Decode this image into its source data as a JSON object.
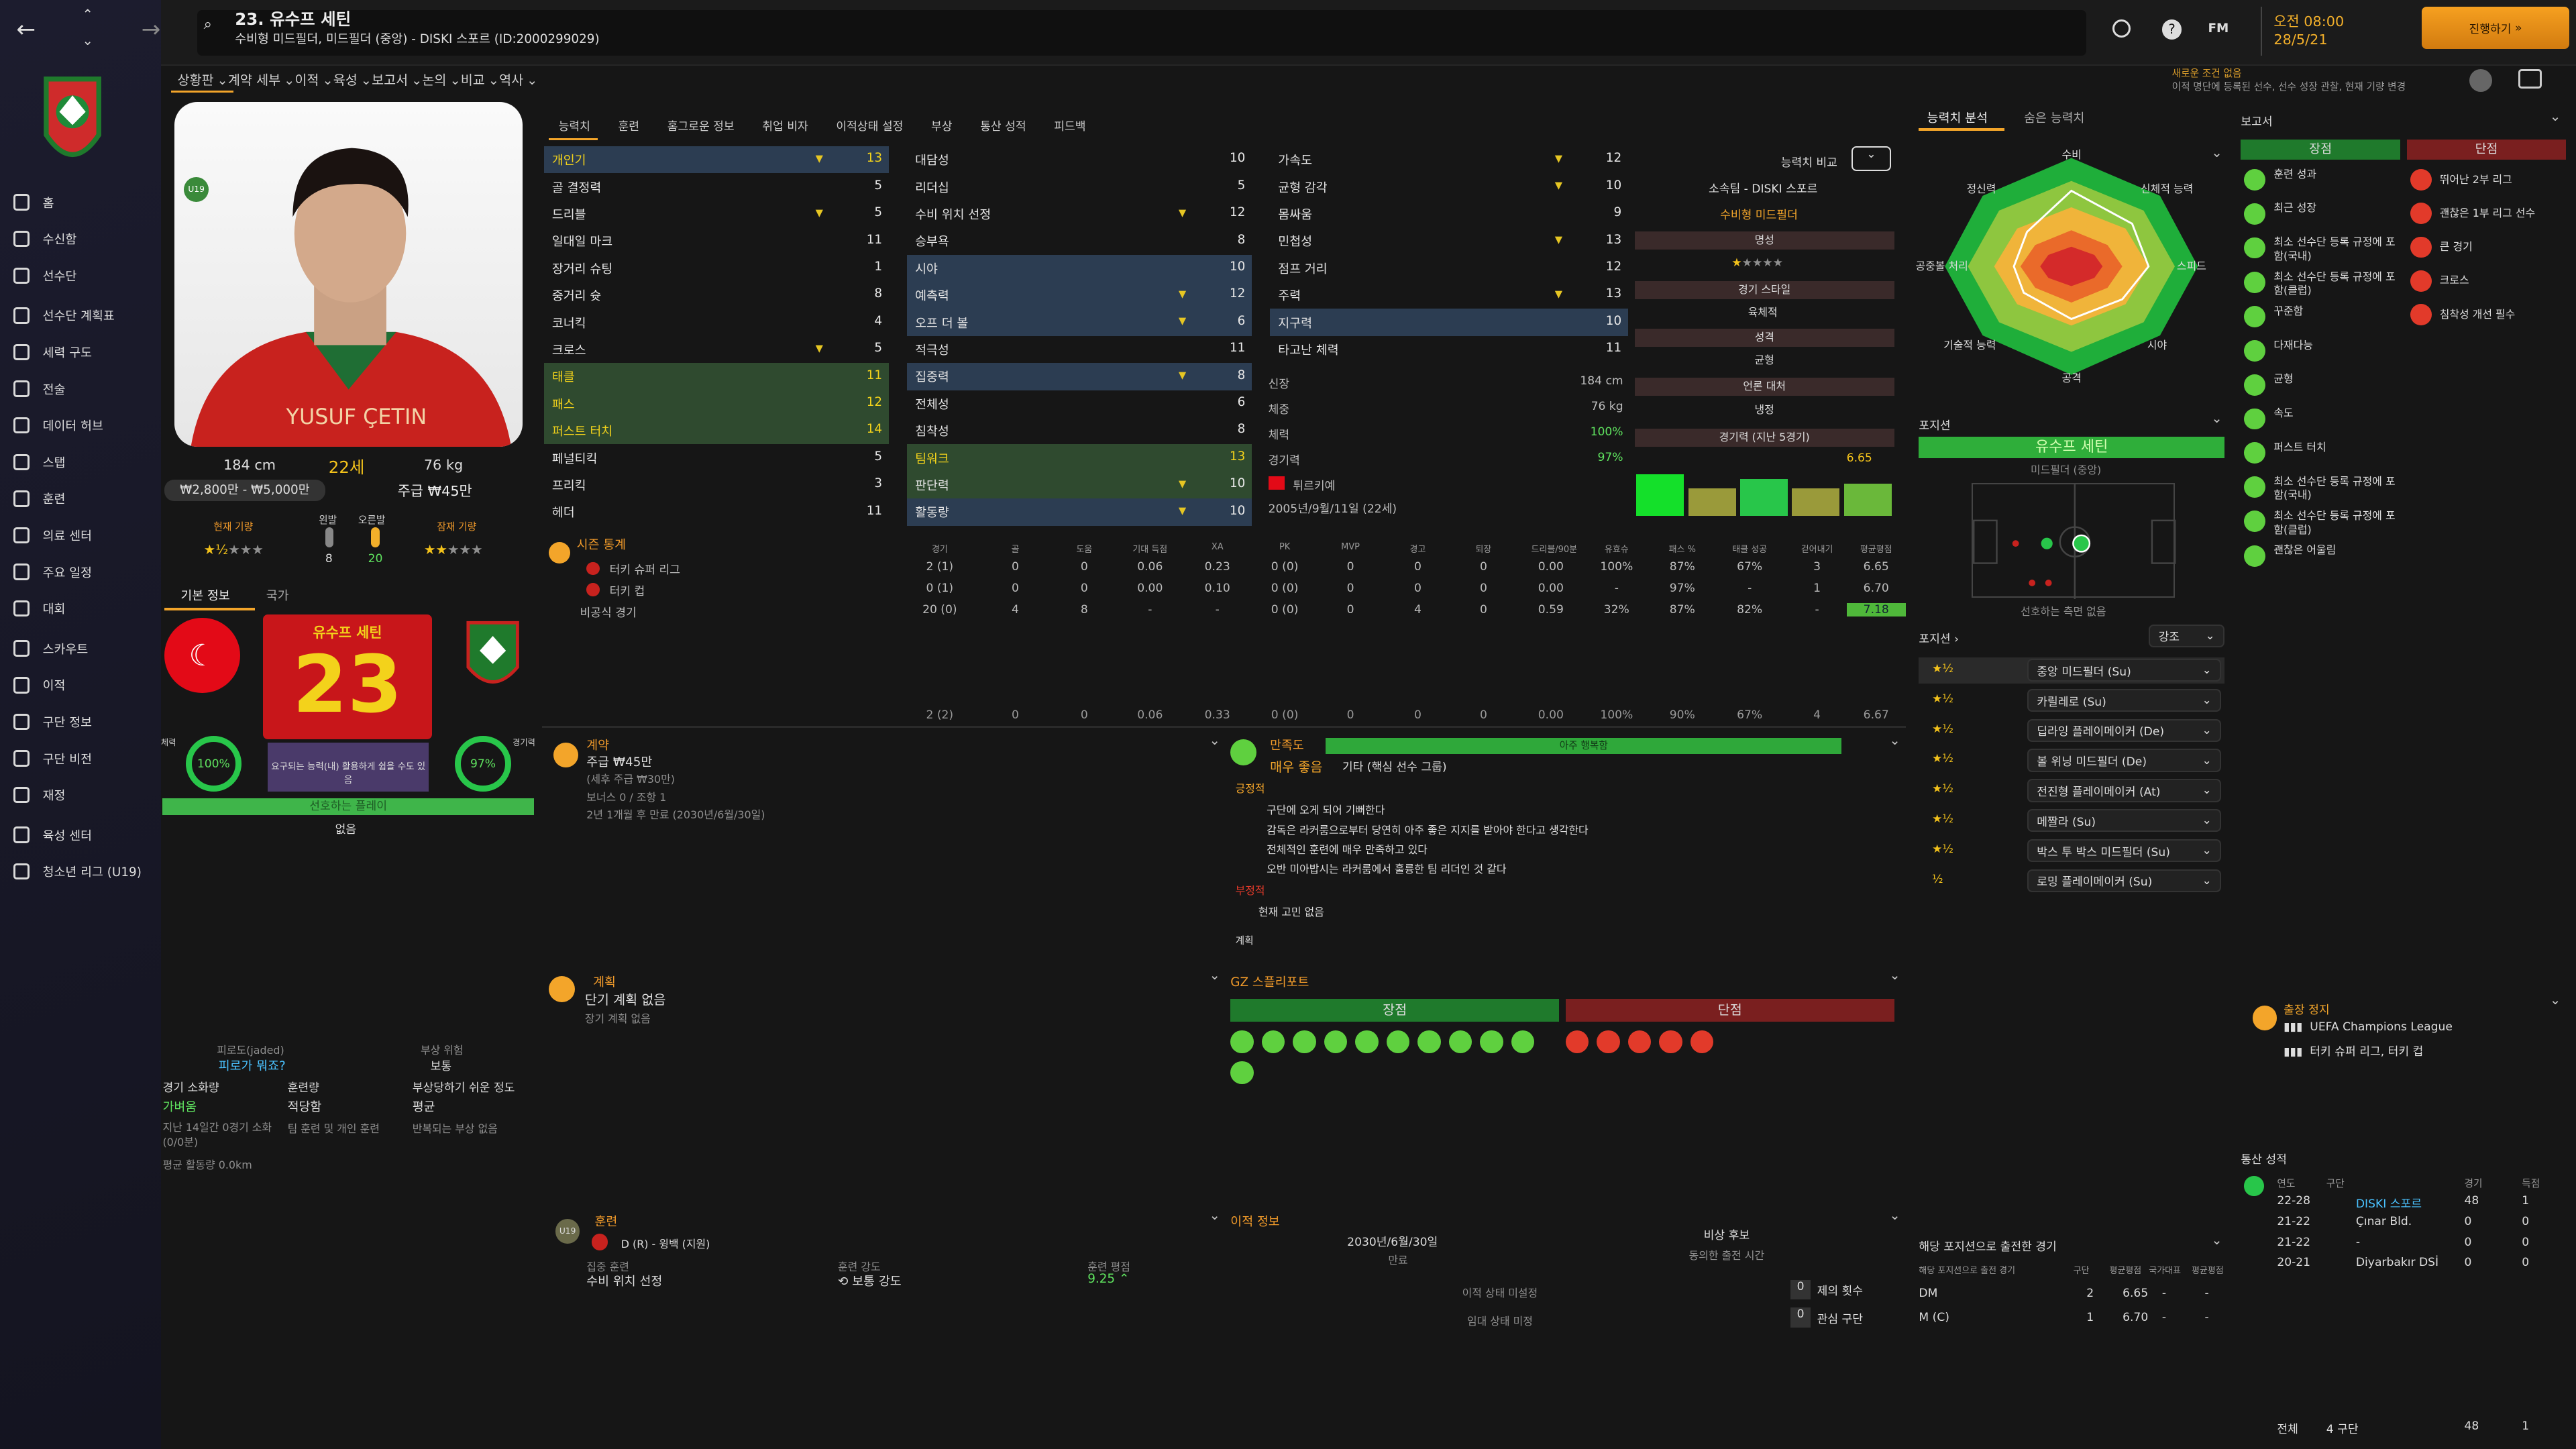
{
  "header": {
    "name": "23. 유수프 세틴",
    "subtitle": "수비형 미드필더, 미드필더 (중앙) - DISKI 스포르 (ID:2000299029)",
    "time": "오전 08:00",
    "date": "28/5/21",
    "continue": "진행하기",
    "notice1": "새로운 조건 없음",
    "notice2": "이적 명단에 등록된 선수, 선수 성장 관찰, 현재 기량 변경",
    "fm": "FM"
  },
  "subnav": [
    "상황판",
    "계약 세부",
    "이적",
    "육성",
    "보고서",
    "논의",
    "비교",
    "역사"
  ],
  "sidebar": [
    "홈",
    "수신함",
    "선수단",
    "선수단 계획표",
    "세력 구도",
    "전술",
    "데이터 허브",
    "스탭",
    "훈련",
    "의료 센터",
    "주요 일정",
    "대회",
    "스카우트",
    "이적",
    "구단 정보",
    "구단 비전",
    "재정",
    "육성 센터",
    "청소년 리그 (U19)"
  ],
  "player": {
    "height": "184 cm",
    "age": "22세",
    "weight": "76 kg",
    "value": "₩2,800만 - ₩5,000만",
    "wage": "주급 ₩45만",
    "cur_label": "현재 기량",
    "pot_label": "잠재 기량",
    "left_foot": "왼발",
    "right_foot": "오른발",
    "left_val": "8",
    "right_val": "20",
    "u19": "U19",
    "shirt_name": "YUSUF ÇETIN"
  },
  "basic": {
    "tab1": "기본 정보",
    "tab2": "국가",
    "card_name": "유수프 세틴",
    "number": "23",
    "fitness_lbl": "체력",
    "fitness": "100%",
    "sharp_lbl": "경기력",
    "sharp": "97%",
    "card_text": "요구되는 능력(내) 활용하게 쉽을 수도 있음",
    "status": "선호하는 플레이",
    "status2": "없음"
  },
  "lower_left": {
    "a": "피로도(jaded)",
    "a2": "피로가 뭐죠?",
    "b": "부상 위험",
    "b2": "보통",
    "c": "경기 소화량",
    "c2": "가벼움",
    "d": "훈련량",
    "d2": "적당함",
    "e": "부상당하기 쉬운 정도",
    "e2": "평균",
    "f": "지난 14일간 0경기 소화(0/0분)",
    "g": "팀 훈련 및 개인 훈련",
    "h": "반복되는 부상 없음",
    "i": "평균 활동량 0.0km"
  },
  "attr_tabs": [
    "능력치",
    "훈련",
    "홈그로운 정보",
    "취업 비자",
    "이적상태 설정",
    "부상",
    "통산 성적",
    "피드백"
  ],
  "tech": [
    [
      "개인기",
      "13"
    ],
    [
      "골 결정력",
      "5"
    ],
    [
      "드리블",
      "5"
    ],
    [
      "일대일 마크",
      "11"
    ],
    [
      "장거리 슈팅",
      "1"
    ],
    [
      "중거리 슛",
      "8"
    ],
    [
      "코너킥",
      "4"
    ],
    [
      "크로스",
      "5"
    ],
    [
      "태클",
      "11"
    ],
    [
      "패스",
      "12"
    ],
    [
      "퍼스트 터치",
      "14"
    ],
    [
      "페널티킥",
      "5"
    ],
    [
      "프리킥",
      "3"
    ],
    [
      "헤더",
      "11"
    ]
  ],
  "ment": [
    [
      "대담성",
      "10"
    ],
    [
      "리더십",
      "5"
    ],
    [
      "수비 위치 선정",
      "12"
    ],
    [
      "승부욕",
      "8"
    ],
    [
      "시야",
      "10"
    ],
    [
      "예측력",
      "12"
    ],
    [
      "오프 더 볼",
      "6"
    ],
    [
      "적극성",
      "11"
    ],
    [
      "집중력",
      "8"
    ],
    [
      "전체성",
      "6"
    ],
    [
      "침착성",
      "8"
    ],
    [
      "팀워크",
      "13"
    ],
    [
      "판단력",
      "10"
    ],
    [
      "활동량",
      "10"
    ]
  ],
  "phys": [
    [
      "가속도",
      "12"
    ],
    [
      "균형 감각",
      "10"
    ],
    [
      "몸싸움",
      "9"
    ],
    [
      "민첩성",
      "13"
    ],
    [
      "점프 거리",
      "12"
    ],
    [
      "주력",
      "13"
    ],
    [
      "지구력",
      "10"
    ],
    [
      "타고난 체력",
      "11"
    ]
  ],
  "info": {
    "h": "신장",
    "hv": "184 cm",
    "w": "체중",
    "wv": "76 kg",
    "f": "체력",
    "fv": "100%",
    "s": "경기력",
    "sv": "97%",
    "nat": "튀르키예",
    "dob": "2005년/9월/11일 (22세)",
    "stat": "매우 좋음"
  },
  "compare": {
    "title": "능력치 비교",
    "club": "소속팀 - DISKI 스포르",
    "role": "수비형 미드필더",
    "rep": "명성",
    "style": "경기 스타일",
    "style2": "육체적",
    "pers": "성격",
    "pers2": "균형",
    "media": "언론 대처",
    "media2": "냉정",
    "form": "경기력 (지난 5경기)",
    "rating": "6.65"
  },
  "season": {
    "title": "시즌 통계",
    "cols": [
      "경기",
      "골",
      "도움",
      "기대 득점",
      "XA",
      "PK",
      "MVP",
      "경고",
      "퇴장",
      "드리블/90분",
      "유효슈",
      "패스 %",
      "태클 성공",
      "걷어내기",
      "평균평점"
    ],
    "rows": [
      [
        "터키 슈퍼 리그",
        "2 (1)",
        "0",
        "0",
        "0.06",
        "0.23",
        "0 (0)",
        "0",
        "0",
        "0",
        "0.00",
        "100%",
        "87%",
        "67%",
        "3",
        "6.65"
      ],
      [
        "터키 컵",
        "0 (1)",
        "0",
        "0",
        "0.00",
        "0.10",
        "0 (0)",
        "0",
        "0",
        "0",
        "0.00",
        "-",
        "97%",
        "-",
        "1",
        "6.70"
      ],
      [
        "비공식 경기",
        "20 (0)",
        "4",
        "8",
        "-",
        "-",
        "0 (0)",
        "0",
        "4",
        "0",
        "0.59",
        "32%",
        "87%",
        "82%",
        "-",
        "7.18"
      ]
    ],
    "total": [
      "2 (2)",
      "0",
      "0",
      "0.06",
      "0.33",
      "0 (0)",
      "0",
      "0",
      "0",
      "0.00",
      "100%",
      "90%",
      "67%",
      "4",
      "6.67"
    ]
  },
  "contract": {
    "title": "계약",
    "wage": "주급 ₩45만",
    "note": "(세후 주급 ₩30만)",
    "bonus": "보너스 0 / 조항 1",
    "end": "2년 1개월 후 만료 (2030년/6월/30일)"
  },
  "happy": {
    "title": "만족도",
    "bar": "아주 행복함",
    "level": "매우 좋음",
    "grp": "기타 (핵심 선수 그룹)",
    "pos": "긍정적",
    "p1": "구단에 오게 되어 기뻐한다",
    "p2": "감독은 라커룸으로부터 당연히 아주 좋은 지지를 받아야 한다고 생각한다",
    "p3": "전체적인 훈련에 매우 만족하고 있다",
    "p4": "오반 미아밥시는 라커룸에서 훌륭한 팀 리더인 것 같다",
    "neg": "부정적",
    "n1": "현재 고민 없음",
    "plan": "계획"
  },
  "plans": {
    "title": "계획",
    "t1": "단기 계획 없음",
    "t2": "장기 계획 없음"
  },
  "gz": {
    "title": "GZ 스플리포트",
    "pro": "장점",
    "con": "단점"
  },
  "training": {
    "title": "훈련",
    "unit": "D (R) - 윙백 (지원)",
    "lbl1": "집중 훈련",
    "val1": "수비 위치 선정",
    "lbl2": "훈련 강도",
    "val2": "보통 강도",
    "lbl3": "훈련 평점",
    "val3": "9.25"
  },
  "transfer": {
    "title": "이적 정보",
    "date": "2030년/6월/30일",
    "date_lbl": "만료",
    "k1": "비상 후보",
    "k1b": "동의한 출전 시간",
    "a": "이적 상태 미설정",
    "b": "임대 상태 미정",
    "c1": "0",
    "c1l": "제의 횟수",
    "c2": "0",
    "c2l": "관심 구단"
  },
  "ability": {
    "tab1": "능력치 분석",
    "tab2": "숨은 능력치",
    "labels": [
      "수비",
      "신체적 능력",
      "스피드",
      "시야",
      "공격",
      "기술적 능력",
      "공중볼 처리",
      "정신력"
    ]
  },
  "position": {
    "title": "포지션",
    "name": "유수프 세틴",
    "sub": "미드필더 (중앙)",
    "foot": "선호하는 측면 없음"
  },
  "roles": {
    "title": "포지션",
    "filter": "강조",
    "items": [
      "중앙 미드필더 (Su)",
      "카릴레로 (Su)",
      "딥라잉 플레이메이커 (De)",
      "볼 위닝 미드필더 (De)",
      "전진형 플레이메이커 (At)",
      "메짤라 (Su)",
      "박스 투 박스 미드필더 (Su)",
      "로밍 플레이메이커 (Su)"
    ]
  },
  "played": {
    "title": "해당 포지션으로 출전한 경기",
    "cols": [
      "해당 포지션으로 출전 경기",
      "구단",
      "평균평점",
      "국가대표",
      "평균평점"
    ],
    "rows": [
      [
        "DM",
        "2",
        "6.65",
        "-",
        "-"
      ],
      [
        "M (C)",
        "1",
        "6.70",
        "-",
        "-"
      ]
    ]
  },
  "report": {
    "title": "보고서",
    "pro": "장점",
    "con": "단점",
    "pros": [
      "훈련 성과",
      "최근 성장",
      "최소 선수단 등록 규정에 포함(국내)",
      "최소 선수단 등록 규정에 포함(클럽)",
      "꾸준함",
      "다재다능",
      "균형",
      "속도",
      "퍼스트 터치",
      "최소 선수단 등록 규정에 포함(국내)",
      "최소 선수단 등록 규정에 포함(클럽)",
      "괜찮은 어울림"
    ],
    "cons": [
      "뛰어난 2부 리그",
      "괜찮은 1부 리그 선수",
      "큰 경기",
      "크로스",
      "침착성 개선 필수"
    ]
  },
  "ban": {
    "title": "출장 정지",
    "c1": "UEFA Champions League",
    "c2": "터키 슈퍼 리그, 터키 컵"
  },
  "career": {
    "title": "통산 성적",
    "cols": [
      "연도",
      "구단",
      "경기",
      "득점"
    ],
    "rows": [
      [
        "22-28",
        "DISKI 스포르",
        "48",
        "1"
      ],
      [
        "21-22",
        "Çınar Bld.",
        "0",
        "0"
      ],
      [
        "21-22",
        "-",
        "0",
        "0"
      ],
      [
        "20-21",
        "Diyarbakır DSİ",
        "0",
        "0"
      ]
    ],
    "total_lbl": "전체",
    "total_clubs": "4 구단",
    "total_apps": "48",
    "total_goals": "1"
  }
}
